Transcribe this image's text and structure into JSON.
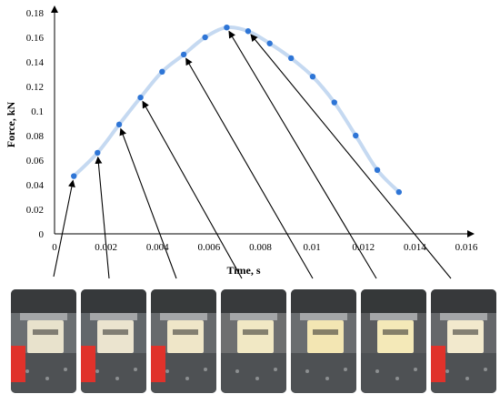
{
  "chart_data": {
    "type": "scatter",
    "title": "",
    "xlabel": "Time, s",
    "ylabel": "Force, kN",
    "xlim": [
      0,
      0.016
    ],
    "ylim": [
      0,
      0.18
    ],
    "x_ticks": [
      0,
      0.002,
      0.004,
      0.006,
      0.008,
      0.01,
      0.012,
      0.014,
      0.016
    ],
    "y_ticks": [
      0,
      0.02,
      0.04,
      0.06,
      0.08,
      0.1,
      0.12,
      0.14,
      0.16,
      0.18
    ],
    "x_tick_labels": [
      "0",
      "0.002",
      "0.004",
      "0.006",
      "0.008",
      "0.01",
      "0.012",
      "0.014",
      "0.016"
    ],
    "y_tick_labels": [
      "0",
      "0.02",
      "0.04",
      "0.06",
      "0.08",
      "0.1",
      "0.12",
      "0.14",
      "0.16",
      "0.18"
    ],
    "grid": false,
    "legend": "none",
    "series": [
      {
        "x": [
          0.00075,
          0.00167,
          0.00251,
          0.00334,
          0.00418,
          0.00502,
          0.00585,
          0.00669,
          0.00752,
          0.00836,
          0.00919,
          0.01003,
          0.01087,
          0.0117,
          0.01254,
          0.01338
        ],
        "y": [
          0.047,
          0.066,
          0.089,
          0.111,
          0.132,
          0.146,
          0.16,
          0.168,
          0.165,
          0.155,
          0.143,
          0.128,
          0.107,
          0.08,
          0.052,
          0.034
        ],
        "color": "#2E75D6",
        "line_color": "#C5D9F1"
      }
    ],
    "annotations": {
      "type": "arrows from video frames to curve points",
      "arrow_targets": [
        {
          "x": 0.00075,
          "y": 0.047
        },
        {
          "x": 0.00167,
          "y": 0.066
        },
        {
          "x": 0.00251,
          "y": 0.089
        },
        {
          "x": 0.00334,
          "y": 0.111
        },
        {
          "x": 0.00502,
          "y": 0.146
        },
        {
          "x": 0.00669,
          "y": 0.168
        },
        {
          "x": 0.00752,
          "y": 0.165
        }
      ]
    }
  },
  "frames": [
    {
      "name": "frame-1",
      "base": "#6b6f72",
      "block": "#e8e2cc",
      "red": true
    },
    {
      "name": "frame-2",
      "base": "#62676b",
      "block": "#ebe4cf",
      "red": true
    },
    {
      "name": "frame-3",
      "base": "#676a6d",
      "block": "#efe6c8",
      "red": true
    },
    {
      "name": "frame-4",
      "base": "#6e6f70",
      "block": "#f1e8c4",
      "red": false
    },
    {
      "name": "frame-5",
      "base": "#6a6d70",
      "block": "#f3e6b3",
      "red": false
    },
    {
      "name": "frame-6",
      "base": "#5a5c5e",
      "block": "#f4e9b8",
      "red": false
    },
    {
      "name": "frame-7",
      "base": "#65676a",
      "block": "#f2e9cd",
      "red": true
    }
  ]
}
